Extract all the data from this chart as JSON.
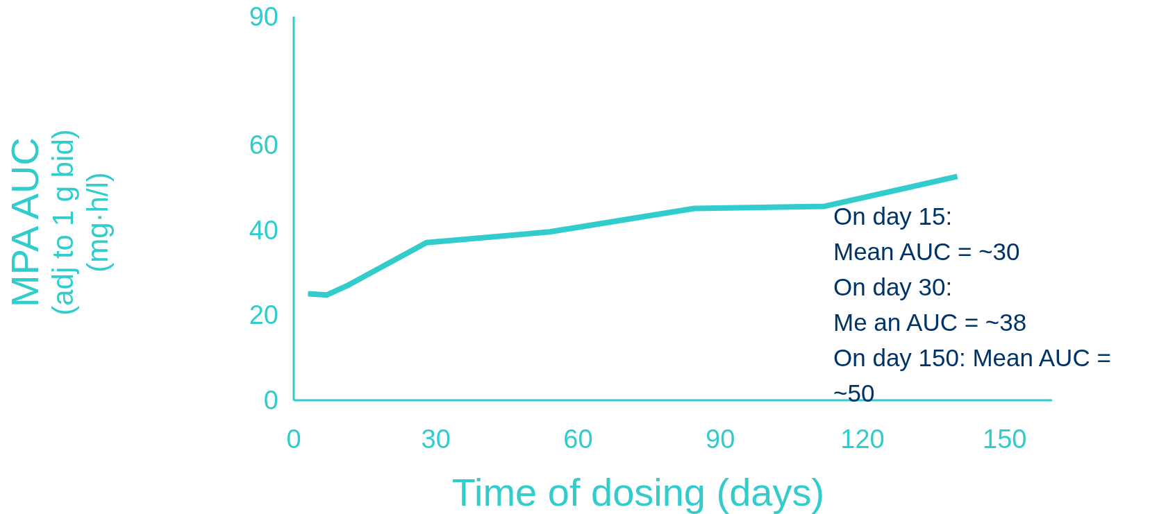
{
  "chart_data": {
    "type": "line",
    "xlabel": "Time of dosing (days)",
    "ylabel": "MPA AUC\n(adj to 1 g bid)\n(mg·h/l)",
    "x": [
      3,
      7,
      11.5,
      28,
      54,
      84.5,
      112,
      140
    ],
    "series": [
      {
        "color": "#33cccc",
        "values": [
          25,
          24.7,
          27,
          37,
          39.5,
          45,
          45.5,
          52.5
        ]
      }
    ],
    "xlim": [
      0,
      160
    ],
    "xticks": [
      0,
      30,
      60,
      90,
      120,
      150
    ],
    "ylim": [
      0,
      90
    ],
    "yticks": [
      0,
      20,
      40,
      60,
      90
    ],
    "grid": false,
    "marker": "none",
    "line_style": "solid",
    "annotations": [
      "On day 15:",
      "Mean AUC = ~30",
      "On day 30:",
      "Me an AUC = ~38",
      "On day 150: Mean AUC =",
      "~50"
    ]
  }
}
